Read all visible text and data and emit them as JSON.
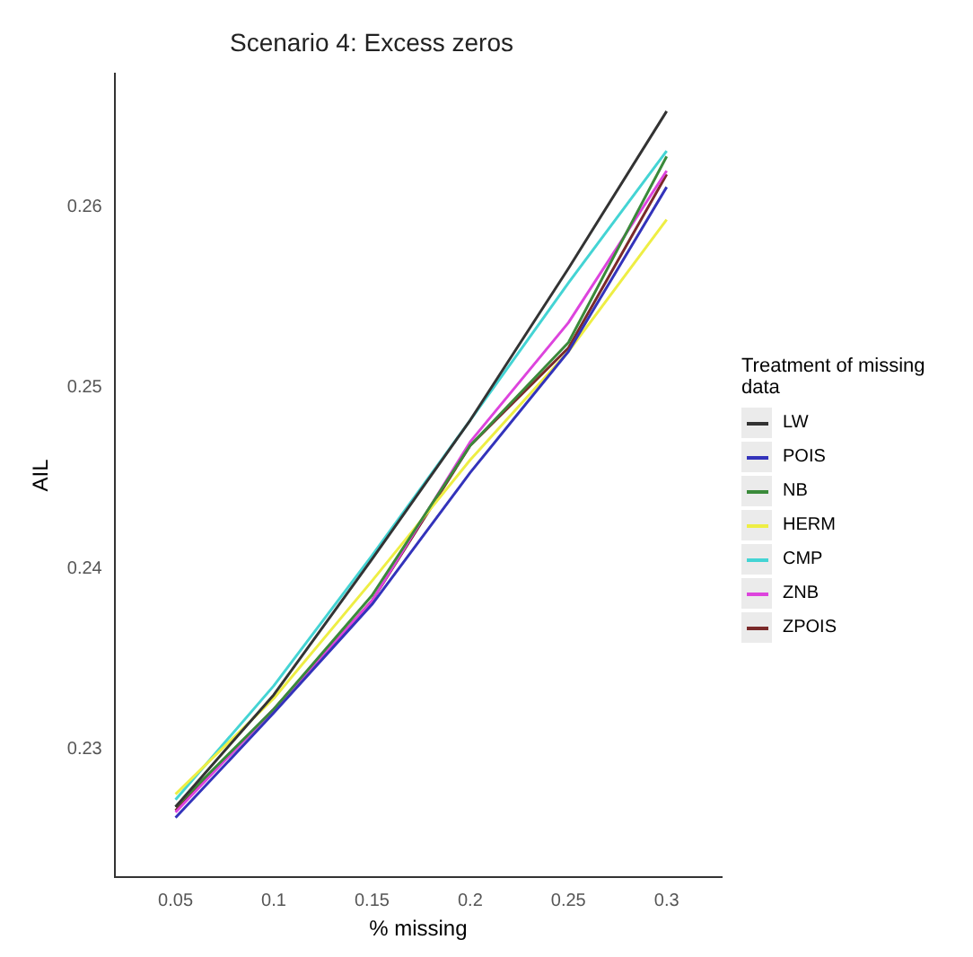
{
  "chart_data": {
    "type": "line",
    "title": "Scenario 4: Excess zeros",
    "xlabel": "% missing",
    "ylabel": "AIL",
    "legend_title": "Treatment of missing data",
    "x": [
      0.05,
      0.1,
      0.15,
      0.2,
      0.25,
      0.3
    ],
    "xlim": [
      0.019,
      0.328
    ],
    "xticks": [
      0.05,
      0.1,
      0.15,
      0.2,
      0.25,
      0.3
    ],
    "ylim": [
      0.2229,
      0.2674
    ],
    "yticks": [
      0.23,
      0.24,
      0.25,
      0.26
    ],
    "grid": false,
    "legend": "right",
    "marker": "none",
    "line_style": "solid",
    "series": [
      {
        "name": "LW",
        "color": "#333333",
        "values": [
          0.2268,
          0.233,
          0.2405,
          0.2482,
          0.2566,
          0.2653
        ]
      },
      {
        "name": "POIS",
        "color": "#3333bb",
        "values": [
          0.2262,
          0.232,
          0.238,
          0.2453,
          0.252,
          0.2611
        ]
      },
      {
        "name": "NB",
        "color": "#3a8a3a",
        "values": [
          0.2268,
          0.2322,
          0.2385,
          0.2468,
          0.2525,
          0.2628
        ]
      },
      {
        "name": "HERM",
        "color": "#eeee44",
        "values": [
          0.2275,
          0.2328,
          0.2393,
          0.246,
          0.252,
          0.2593
        ]
      },
      {
        "name": "CMP",
        "color": "#44d4d4",
        "values": [
          0.2272,
          0.2335,
          0.2407,
          0.2482,
          0.2558,
          0.2631
        ]
      },
      {
        "name": "ZNB",
        "color": "#dd44dd",
        "values": [
          0.2265,
          0.2322,
          0.2382,
          0.247,
          0.2536,
          0.262
        ]
      },
      {
        "name": "ZPOIS",
        "color": "#7a2a2a",
        "values": [
          0.2266,
          0.2322,
          0.2382,
          0.2468,
          0.2522,
          0.2618
        ]
      }
    ]
  }
}
